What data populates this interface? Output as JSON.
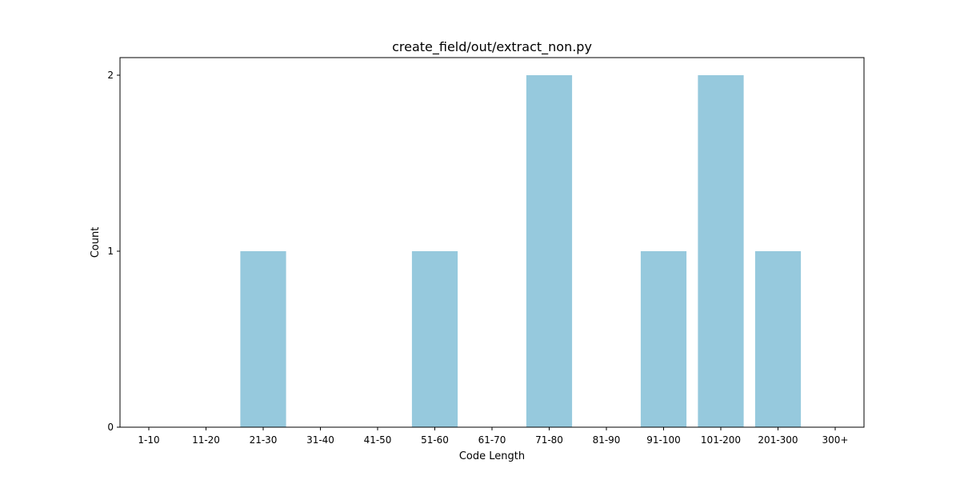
{
  "chart_data": {
    "type": "bar",
    "title": "create_field/out/extract_non.py",
    "xlabel": "Code Length",
    "ylabel": "Count",
    "categories": [
      "1-10",
      "11-20",
      "21-30",
      "31-40",
      "41-50",
      "51-60",
      "61-70",
      "71-80",
      "81-90",
      "91-100",
      "101-200",
      "201-300",
      "300+"
    ],
    "values": [
      0,
      0,
      1,
      0,
      0,
      1,
      0,
      2,
      0,
      1,
      2,
      1,
      0
    ],
    "ylim": [
      0,
      2.1
    ],
    "yticks": [
      "0",
      "1",
      "2"
    ],
    "bar_color": "#96c9dd",
    "grid": false,
    "legend": "none"
  }
}
